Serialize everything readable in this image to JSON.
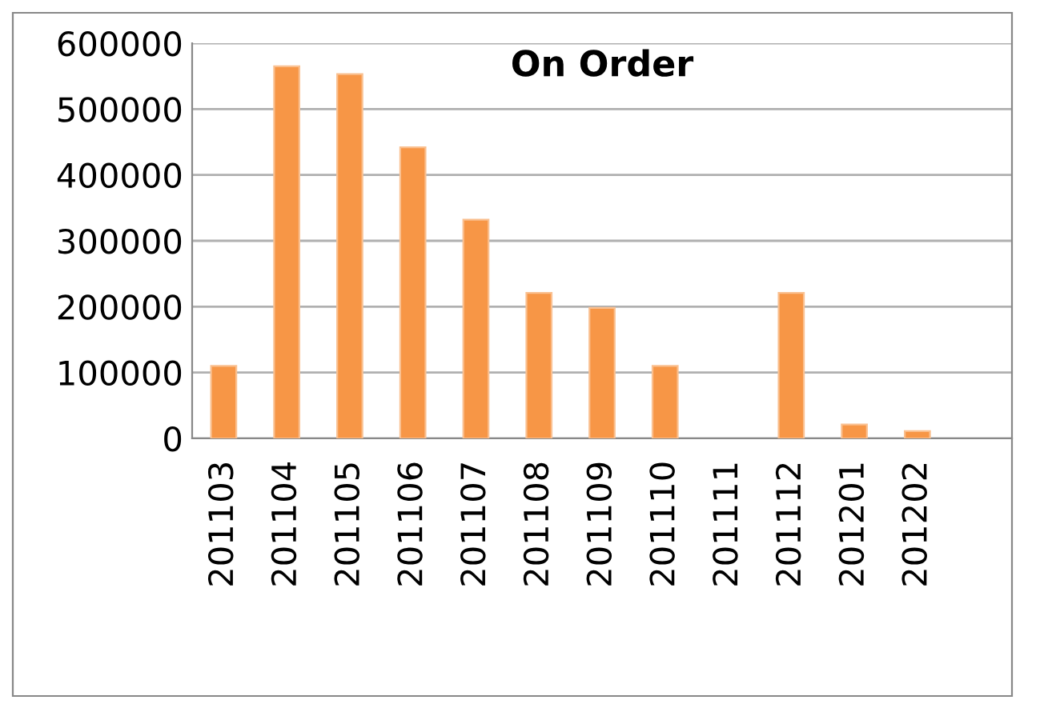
{
  "chart_data": {
    "type": "bar",
    "title": "On Order",
    "categories": [
      "201103",
      "201104",
      "201105",
      "201106",
      "201107",
      "201108",
      "201109",
      "201110",
      "201111",
      "201112",
      "201201",
      "201202",
      null
    ],
    "values": [
      110000,
      565000,
      553000,
      442000,
      332000,
      221000,
      198000,
      110000,
      null,
      221000,
      21000,
      11000,
      null
    ],
    "color": "#f79646",
    "ylim": [
      0,
      600000
    ],
    "yticks": [
      0,
      100000,
      200000,
      300000,
      400000,
      500000,
      600000
    ],
    "grid": "y",
    "legend": false
  }
}
